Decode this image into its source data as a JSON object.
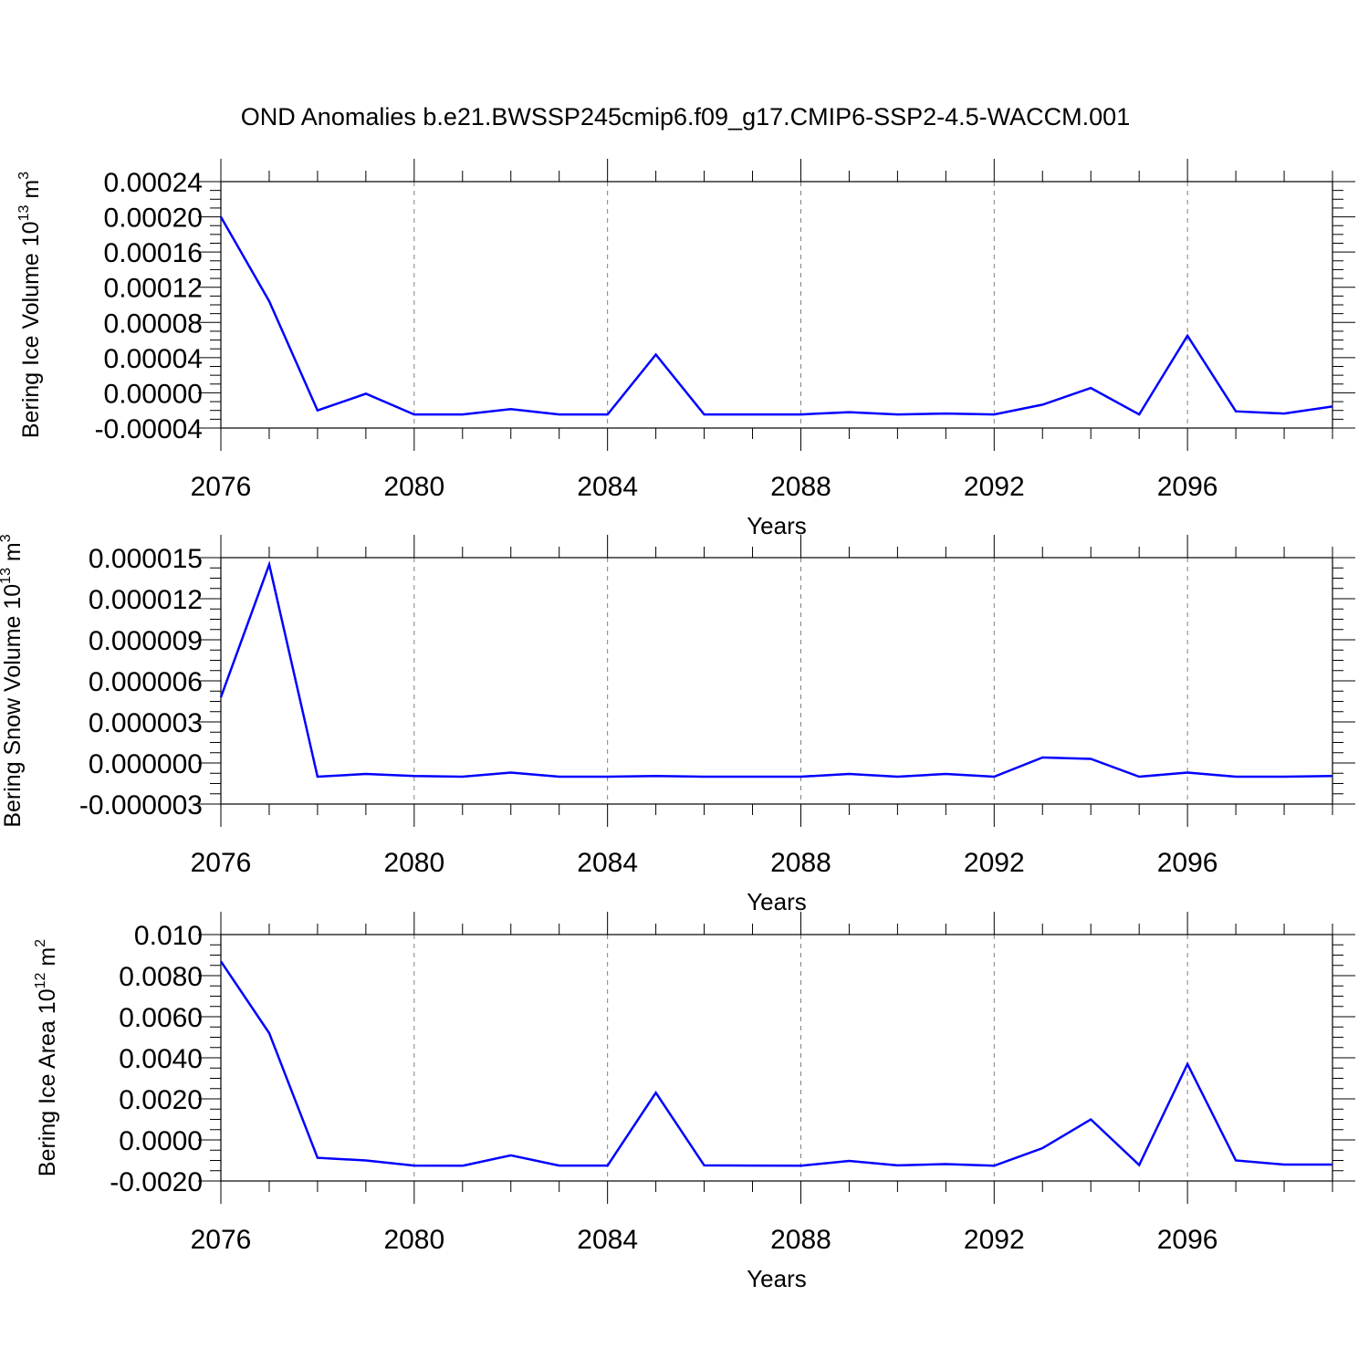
{
  "title": "OND Anomalies b.e21.BWSSP245cmip6.f09_g17.CMIP6-SSP2-4.5-WACCM.001",
  "colors": {
    "series": "#0000ff",
    "axis": "#000000",
    "grid": "#808080",
    "background": "#ffffff"
  },
  "chart_data": [
    {
      "type": "line",
      "ylabel": "Bering Ice Volume 10",
      "ylabel_exp": "13",
      "ylabel_unit": " m",
      "ylabel_unit_exp": "3",
      "xlabel": "Years",
      "xlim": [
        2076,
        2099
      ],
      "ylim": [
        -4e-05,
        0.00024
      ],
      "x": [
        2076,
        2077,
        2078,
        2079,
        2080,
        2081,
        2082,
        2083,
        2084,
        2085,
        2086,
        2087,
        2088,
        2089,
        2090,
        2091,
        2092,
        2093,
        2094,
        2095,
        2096,
        2097,
        2098,
        2099
      ],
      "values": [
        0.0002,
        0.000104,
        -2e-05,
        -1e-06,
        -2.45e-05,
        -2.45e-05,
        -1.85e-05,
        -2.45e-05,
        -2.45e-05,
        4.35e-05,
        -2.45e-05,
        -2.45e-05,
        -2.45e-05,
        -2.2e-05,
        -2.45e-05,
        -2.35e-05,
        -2.45e-05,
        -1.35e-05,
        5.5e-06,
        -2.45e-05,
        6.5e-05,
        -2.1e-05,
        -2.35e-05,
        -1.55e-05
      ],
      "yticks": [
        -4e-05,
        0.0,
        4e-05,
        8e-05,
        0.00012,
        0.00016,
        0.0002,
        0.00024
      ],
      "ytick_labels": [
        "-0.00004",
        "0.00000",
        "0.00004",
        "0.00008",
        "0.00012",
        "0.00016",
        "0.00020",
        "0.00024"
      ],
      "xticks": [
        2076,
        2080,
        2084,
        2088,
        2092,
        2096
      ],
      "xtick_labels": [
        "2076",
        "2080",
        "2084",
        "2088",
        "2092",
        "2096"
      ],
      "grid": "vertical dashed at labeled years"
    },
    {
      "type": "line",
      "ylabel": "Bering Snow Volume 10",
      "ylabel_exp": "13",
      "ylabel_unit": " m",
      "ylabel_unit_exp": "3",
      "xlabel": "Years",
      "xlim": [
        2076,
        2099
      ],
      "ylim": [
        -3e-06,
        1.5e-05
      ],
      "x": [
        2076,
        2077,
        2078,
        2079,
        2080,
        2081,
        2082,
        2083,
        2084,
        2085,
        2086,
        2087,
        2088,
        2089,
        2090,
        2091,
        2092,
        2093,
        2094,
        2095,
        2096,
        2097,
        2098,
        2099
      ],
      "values": [
        4.8e-06,
        1.45e-05,
        -1e-06,
        -8e-07,
        -9.5e-07,
        -1e-06,
        -7e-07,
        -1e-06,
        -1e-06,
        -9.5e-07,
        -1e-06,
        -1e-06,
        -1e-06,
        -8e-07,
        -1e-06,
        -8e-07,
        -1e-06,
        4e-07,
        3e-07,
        -1e-06,
        -7e-07,
        -1e-06,
        -1e-06,
        -9.5e-07
      ],
      "yticks": [
        -3e-06,
        0.0,
        3e-06,
        6e-06,
        9e-06,
        1.2e-05,
        1.5e-05
      ],
      "ytick_labels": [
        "-0.000003",
        "0.000000",
        "0.000003",
        "0.000006",
        "0.000009",
        "0.000012",
        "0.000015"
      ],
      "xticks": [
        2076,
        2080,
        2084,
        2088,
        2092,
        2096
      ],
      "xtick_labels": [
        "2076",
        "2080",
        "2084",
        "2088",
        "2092",
        "2096"
      ],
      "grid": "vertical dashed at labeled years"
    },
    {
      "type": "line",
      "ylabel": "Bering Ice Area 10",
      "ylabel_exp": "12",
      "ylabel_unit": " m",
      "ylabel_unit_exp": "2",
      "xlabel": "Years",
      "xlim": [
        2076,
        2099
      ],
      "ylim": [
        -0.002,
        0.01
      ],
      "x": [
        2076,
        2077,
        2078,
        2079,
        2080,
        2081,
        2082,
        2083,
        2084,
        2085,
        2086,
        2087,
        2088,
        2089,
        2090,
        2091,
        2092,
        2093,
        2094,
        2095,
        2096,
        2097,
        2098,
        2099
      ],
      "values": [
        0.0087,
        0.0052,
        -0.00087,
        -0.001,
        -0.00125,
        -0.00126,
        -0.00075,
        -0.00125,
        -0.00125,
        0.0023,
        -0.00124,
        -0.00125,
        -0.00126,
        -0.00102,
        -0.00124,
        -0.00118,
        -0.00126,
        -0.0004,
        0.001,
        -0.00122,
        0.0037,
        -0.001,
        -0.0012,
        -0.0012
      ],
      "yticks": [
        -0.002,
        0.0,
        0.002,
        0.004,
        0.006,
        0.008,
        0.01
      ],
      "ytick_labels": [
        "-0.0020",
        "0.0000",
        "0.0020",
        "0.0040",
        "0.0060",
        "0.0080",
        "0.010"
      ],
      "xticks": [
        2076,
        2080,
        2084,
        2088,
        2092,
        2096
      ],
      "xtick_labels": [
        "2076",
        "2080",
        "2084",
        "2088",
        "2092",
        "2096"
      ],
      "grid": "vertical dashed at labeled years"
    }
  ]
}
